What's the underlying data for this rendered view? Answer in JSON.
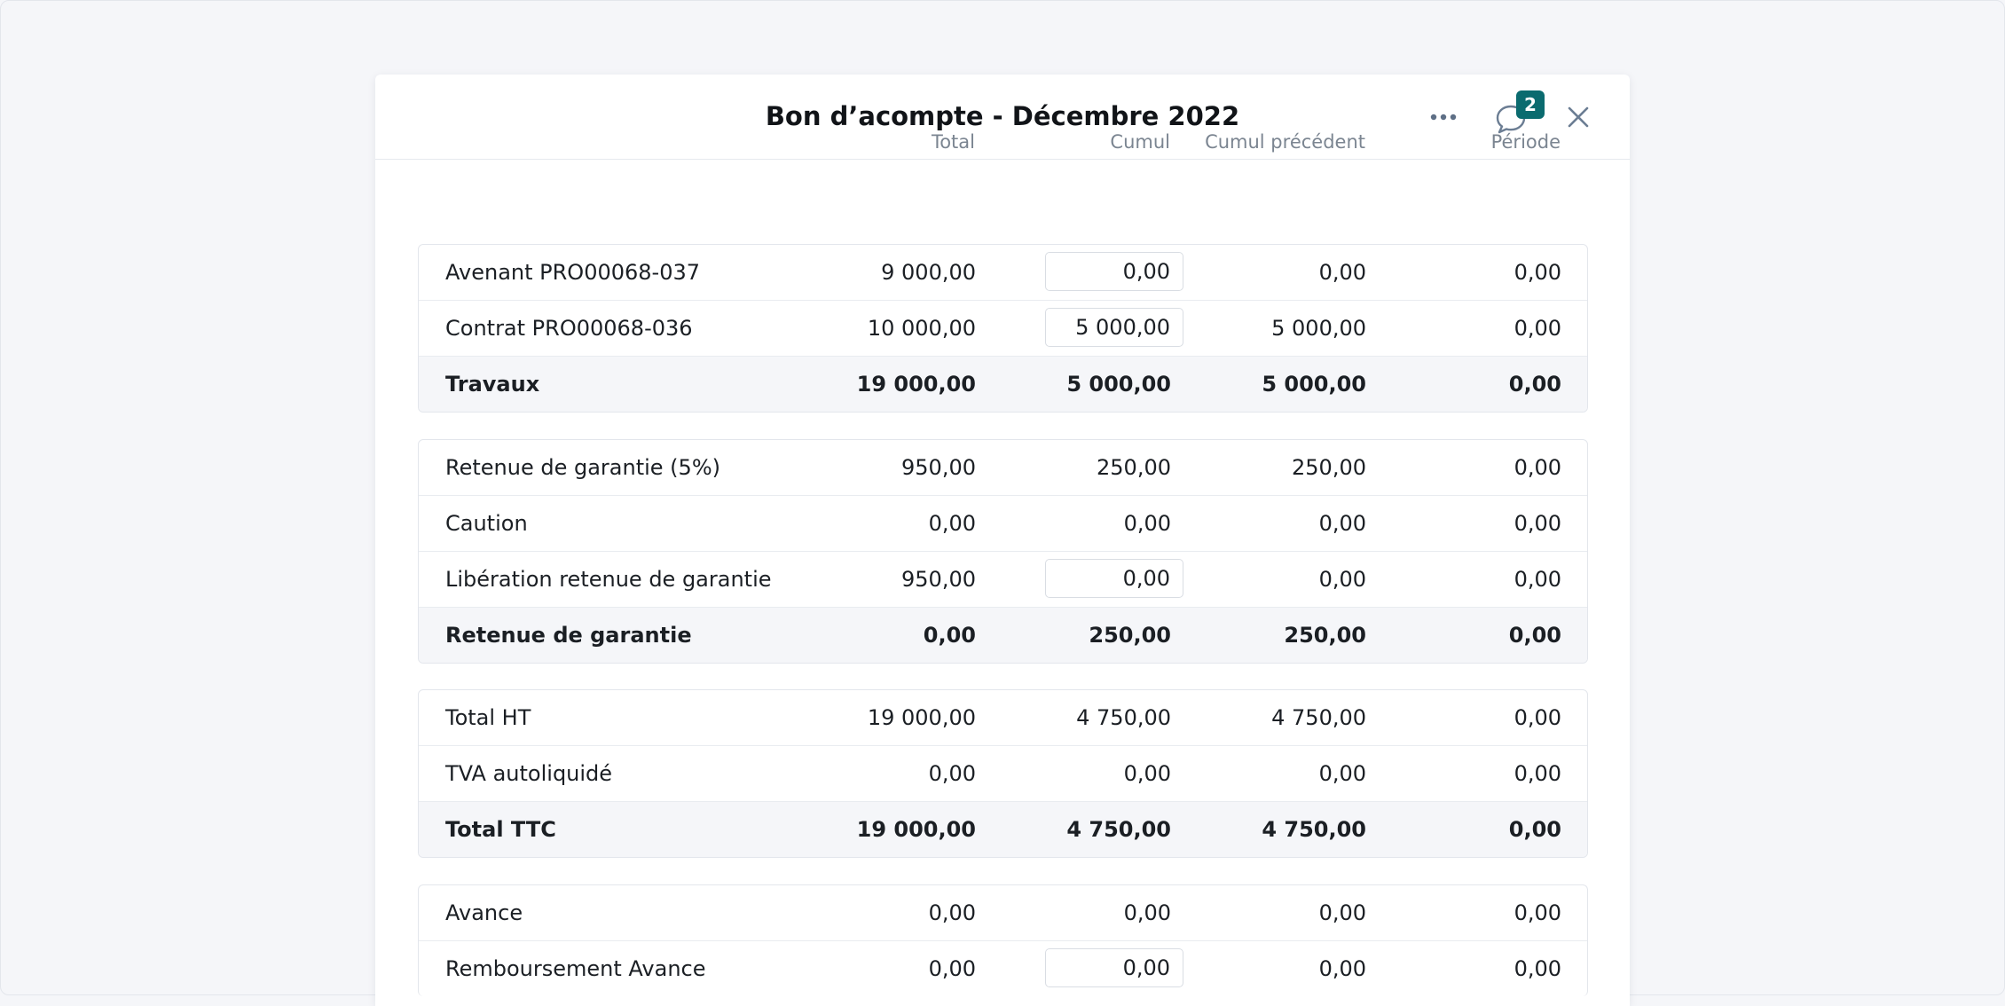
{
  "modal": {
    "title": "Bon d’acompte - Décembre 2022",
    "comment_count": "2"
  },
  "columns": {
    "total": "Total",
    "cumul": "Cumul",
    "cumul_precedent": "Cumul précédent",
    "periode": "Période"
  },
  "groups": [
    {
      "rows": [
        {
          "label": "Avenant PRO00068-037",
          "total": "9 000,00",
          "cumul": "0,00",
          "cumul_editable": true,
          "prev": "0,00",
          "periode": "0,00"
        },
        {
          "label": "Contrat PRO00068-036",
          "total": "10 000,00",
          "cumul": "5 000,00",
          "cumul_editable": true,
          "prev": "5 000,00",
          "periode": "0,00"
        },
        {
          "label": "Travaux",
          "total": "19 000,00",
          "cumul": "5 000,00",
          "cumul_editable": false,
          "prev": "5 000,00",
          "periode": "0,00",
          "is_total": true
        }
      ]
    },
    {
      "rows": [
        {
          "label": "Retenue de garantie (5%)",
          "total": "950,00",
          "cumul": "250,00",
          "cumul_editable": false,
          "prev": "250,00",
          "periode": "0,00"
        },
        {
          "label": "Caution",
          "total": "0,00",
          "cumul": "0,00",
          "cumul_editable": false,
          "prev": "0,00",
          "periode": "0,00"
        },
        {
          "label": "Libération retenue de garantie",
          "total": "950,00",
          "cumul": "0,00",
          "cumul_editable": true,
          "prev": "0,00",
          "periode": "0,00"
        },
        {
          "label": "Retenue de garantie",
          "total": "0,00",
          "cumul": "250,00",
          "cumul_editable": false,
          "prev": "250,00",
          "periode": "0,00",
          "is_total": true
        }
      ]
    },
    {
      "rows": [
        {
          "label": "Total HT",
          "total": "19 000,00",
          "cumul": "4 750,00",
          "cumul_editable": false,
          "prev": "4 750,00",
          "periode": "0,00"
        },
        {
          "label": "TVA autoliquidé",
          "total": "0,00",
          "cumul": "0,00",
          "cumul_editable": false,
          "prev": "0,00",
          "periode": "0,00"
        },
        {
          "label": "Total TTC",
          "total": "19 000,00",
          "cumul": "4 750,00",
          "cumul_editable": false,
          "prev": "4 750,00",
          "periode": "0,00",
          "is_total": true
        }
      ]
    },
    {
      "rows": [
        {
          "label": "Avance",
          "total": "0,00",
          "cumul": "0,00",
          "cumul_editable": false,
          "prev": "0,00",
          "periode": "0,00"
        },
        {
          "label": "Remboursement Avance",
          "total": "0,00",
          "cumul": "0,00",
          "cumul_editable": true,
          "prev": "0,00",
          "periode": "0,00"
        }
      ]
    }
  ],
  "icons": {
    "more": "more-horizontal-icon",
    "comments": "comment-bubble-icon",
    "close": "close-icon"
  },
  "colors": {
    "badge": "#0b6b6f",
    "total_row_bg": "#f5f6f9",
    "header_text_muted": "#7b8591"
  }
}
